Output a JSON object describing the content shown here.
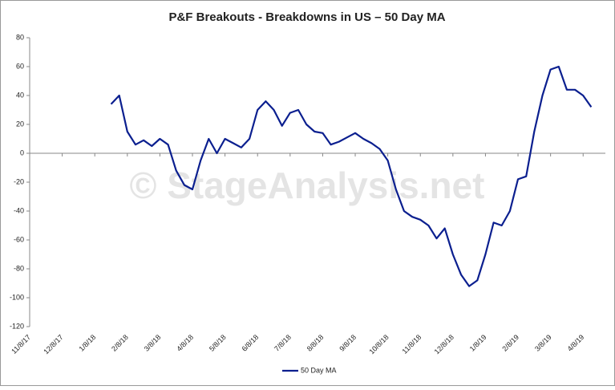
{
  "chart_data": {
    "type": "line",
    "title": "P&F Breakouts - Breakdowns in US – 50 Day MA",
    "annotation": "© StageAnalysis.net",
    "categories": [
      "11/8/17",
      null,
      null,
      null,
      "12/8/17",
      null,
      null,
      null,
      "1/8/18",
      null,
      null,
      null,
      "2/8/18",
      null,
      null,
      null,
      "3/8/18",
      null,
      null,
      null,
      "4/8/18",
      null,
      null,
      null,
      "5/8/18",
      null,
      null,
      null,
      "6/8/18",
      null,
      null,
      null,
      "7/8/18",
      null,
      null,
      null,
      "8/8/18",
      null,
      null,
      null,
      "9/8/18",
      null,
      null,
      null,
      "10/8/18",
      null,
      null,
      null,
      "11/8/18",
      null,
      null,
      null,
      "12/8/18",
      null,
      null,
      null,
      "1/8/19",
      null,
      null,
      null,
      "2/8/19",
      null,
      null,
      null,
      "3/8/19",
      null,
      null,
      null,
      "4/8/19",
      null
    ],
    "series": [
      {
        "name": "50 Day MA",
        "color": "#0b1f8f",
        "values": [
          null,
          null,
          null,
          null,
          null,
          null,
          null,
          null,
          null,
          null,
          34,
          40,
          15,
          6,
          9,
          5,
          10,
          6,
          -12,
          -22,
          -25,
          -5,
          10,
          0,
          10,
          7,
          4,
          10,
          30,
          36,
          30,
          19,
          28,
          30,
          20,
          15,
          14,
          6,
          8,
          11,
          14,
          10,
          7,
          3,
          -5,
          -25,
          -40,
          -44,
          -46,
          -50,
          -59,
          -52,
          -70,
          -84,
          -92,
          -88,
          -70,
          -48,
          -50,
          -40,
          -18,
          -16,
          15,
          40,
          58,
          60,
          44,
          44,
          40,
          32
        ]
      }
    ],
    "ylim": [
      -120,
      80
    ],
    "yticks": [
      -120,
      -100,
      -80,
      -60,
      -40,
      -20,
      0,
      20,
      40,
      60,
      80
    ],
    "legend": "bottom"
  }
}
